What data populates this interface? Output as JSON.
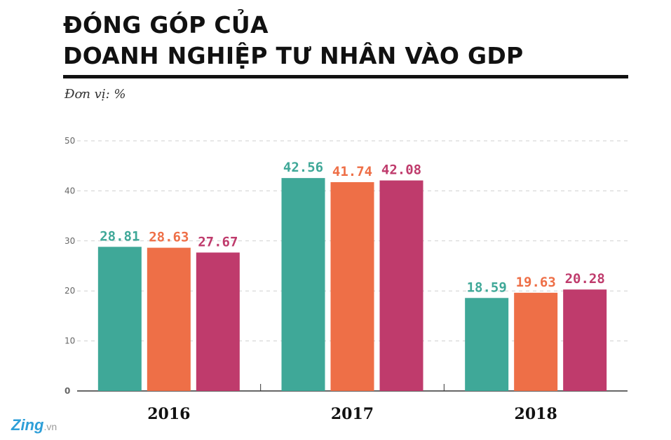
{
  "header": {
    "title_line1": "ĐÓNG GÓP CỦA",
    "title_line2": "DOANH NGHIỆP TƯ NHÂN VÀO GDP",
    "unit": "Đơn vị: %"
  },
  "logo": {
    "brand": "Zing",
    "suffix": ".vn"
  },
  "chart_data": {
    "type": "bar",
    "categories": [
      "2016",
      "2017",
      "2018"
    ],
    "series": [
      {
        "color": "#3fa898",
        "values": [
          28.81,
          42.56,
          18.59
        ]
      },
      {
        "color": "#ee6f47",
        "values": [
          28.63,
          41.74,
          19.63
        ]
      },
      {
        "color": "#bf3b6c",
        "values": [
          27.67,
          42.08,
          20.28
        ]
      }
    ],
    "ylim": [
      0,
      50
    ],
    "yticks": [
      0,
      10,
      20,
      30,
      40,
      50
    ],
    "grid": true
  }
}
